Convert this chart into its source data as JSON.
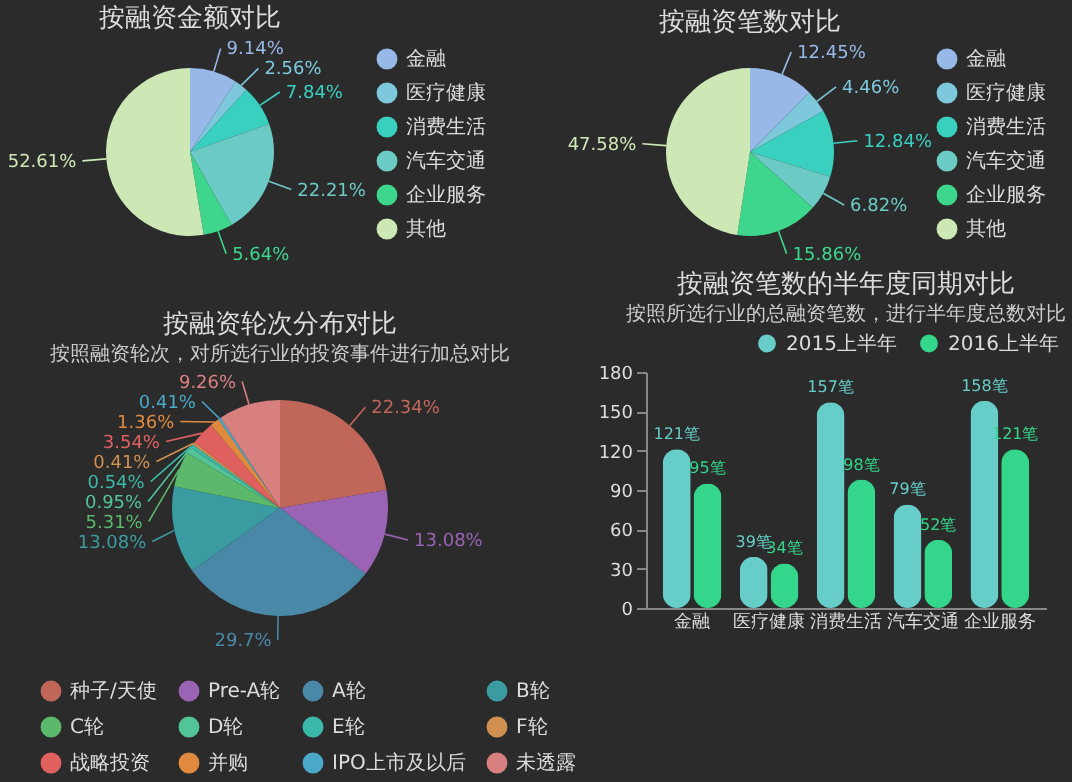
{
  "chart_data": [
    {
      "type": "pie",
      "title": "按融资金额对比",
      "legend": "right",
      "categories": [
        "金融",
        "医疗健康",
        "消费生活",
        "汽车交通",
        "企业服务",
        "其他"
      ],
      "values": [
        9.14,
        2.56,
        7.84,
        22.21,
        5.64,
        52.61
      ],
      "value_labels": [
        "9.14%",
        "2.56%",
        "7.84%",
        "22.21%",
        "5.64%",
        "52.61%"
      ],
      "colors": [
        "#98b8e8",
        "#7ec8dc",
        "#3ad0c0",
        "#6ccac4",
        "#3dd68c",
        "#cde8b4"
      ]
    },
    {
      "type": "pie",
      "title": "按融资笔数对比",
      "legend": "right",
      "categories": [
        "金融",
        "医疗健康",
        "消费生活",
        "汽车交通",
        "企业服务",
        "其他"
      ],
      "values": [
        12.45,
        4.46,
        12.84,
        6.82,
        15.86,
        47.58
      ],
      "value_labels": [
        "12.45%",
        "4.46%",
        "12.84%",
        "6.82%",
        "15.86%",
        "47.58%"
      ],
      "colors": [
        "#98b8e8",
        "#7ec8dc",
        "#3ad0c0",
        "#6ccac4",
        "#3dd68c",
        "#cde8b4"
      ]
    },
    {
      "type": "pie",
      "title": "按融资轮次分布对比",
      "subtitle": "按照融资轮次，对所选行业的投资事件进行加总对比",
      "legend": "bottom",
      "categories": [
        "种子/天使",
        "Pre-A轮",
        "A轮",
        "B轮",
        "C轮",
        "D轮",
        "E轮",
        "F轮",
        "战略投资",
        "并购",
        "IPO上市及以后",
        "未透露"
      ],
      "values": [
        22.34,
        13.08,
        29.7,
        13.08,
        5.31,
        0.95,
        0.54,
        0.41,
        3.54,
        1.36,
        0.41,
        9.26
      ],
      "value_labels": [
        "22.34%",
        "13.08%",
        "29.7%",
        "13.08%",
        "5.31%",
        "0.95%",
        "0.54%",
        "0.41%",
        "3.54%",
        "1.36%",
        "0.41%",
        "9.26%"
      ],
      "colors": [
        "#c1675a",
        "#9a63b4",
        "#4a88a8",
        "#3a9ba0",
        "#5cb86a",
        "#52c498",
        "#3ab8a8",
        "#d09050",
        "#e06060",
        "#e08a40",
        "#4aa8c8",
        "#d88080"
      ]
    },
    {
      "type": "bar",
      "title": "按融资笔数的半年度同期对比",
      "subtitle": "按照所选行业的总融资笔数，进行半年度总数对比",
      "legend": "top right",
      "grid": false,
      "categories": [
        "金融",
        "医疗健康",
        "消费生活",
        "汽车交通",
        "企业服务"
      ],
      "ylim": [
        0,
        180
      ],
      "yticks": [
        0,
        30,
        60,
        90,
        120,
        150,
        180
      ],
      "series": [
        {
          "name": "2015上半年",
          "color": "#66cdc8",
          "values": [
            121,
            39,
            157,
            79,
            158
          ],
          "value_labels": [
            "121笔",
            "39笔",
            "157笔",
            "79笔",
            "158笔"
          ]
        },
        {
          "name": "2016上半年",
          "color": "#33d68a",
          "values": [
            95,
            34,
            98,
            52,
            121
          ],
          "value_labels": [
            "95笔",
            "34笔",
            "98笔",
            "52笔",
            "121笔"
          ]
        }
      ]
    }
  ]
}
